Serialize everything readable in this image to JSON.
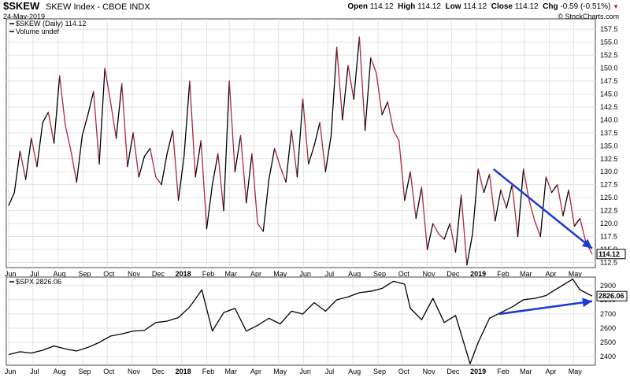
{
  "header": {
    "symbol": "$SKEW",
    "name": "SKEW Index - CBOE INDX",
    "date": "24-May-2019",
    "open_label": "Open",
    "open": "114.12",
    "high_label": "High",
    "high": "114.12",
    "low_label": "Low",
    "low": "114.12",
    "close_label": "Close",
    "close": "114.12",
    "chg_label": "Chg",
    "chg": "-0.59 (-0.51%)",
    "credit": "© StockCharts.com"
  },
  "colors": {
    "skew_line_down": "#b0263a",
    "skew_line_up": "#000000",
    "spx_line": "#000000",
    "arrow": "#1a3bd6",
    "grid": "#e3e3e3",
    "frame": "#444444"
  },
  "chart_data": [
    {
      "type": "line",
      "title": "$SKEW (Daily) 114.12",
      "legend": [
        "$SKEW (Daily) 114.12",
        "Volume undef"
      ],
      "legend_placement": "top-left",
      "x_tick_labels": [
        "Jun",
        "Jul",
        "Aug",
        "Sep",
        "Oct",
        "Nov",
        "Dec",
        "2018",
        "Feb",
        "Mar",
        "Apr",
        "May",
        "Jun",
        "Jul",
        "Aug",
        "Sep",
        "Oct",
        "Nov",
        "Dec",
        "2019",
        "Feb",
        "Mar",
        "Apr",
        "May"
      ],
      "y_tick_labels": [
        "112.5",
        "115.0",
        "117.5",
        "120.0",
        "122.5",
        "125.0",
        "127.5",
        "130.0",
        "132.5",
        "135.0",
        "137.5",
        "140.0",
        "142.5",
        "145.0",
        "147.5",
        "150.0",
        "152.5",
        "155.0",
        "157.5"
      ],
      "ylim": [
        111.5,
        159.5
      ],
      "grid": true,
      "last_value_label": "114.12",
      "series": [
        {
          "x": [
            "2017-06-01",
            "2017-06-08",
            "2017-06-15",
            "2017-06-22",
            "2017-06-29",
            "2017-07-06",
            "2017-07-13",
            "2017-07-20",
            "2017-07-27",
            "2017-08-03",
            "2017-08-10",
            "2017-08-17",
            "2017-08-24",
            "2017-08-31",
            "2017-09-07",
            "2017-09-14",
            "2017-09-21",
            "2017-09-28",
            "2017-10-05",
            "2017-10-12",
            "2017-10-19",
            "2017-10-26",
            "2017-11-02",
            "2017-11-09",
            "2017-11-16",
            "2017-11-23",
            "2017-11-30",
            "2017-12-07",
            "2017-12-14",
            "2017-12-21",
            "2017-12-28",
            "2018-01-04",
            "2018-01-11",
            "2018-01-18",
            "2018-01-25",
            "2018-02-01",
            "2018-02-08",
            "2018-02-15",
            "2018-02-22",
            "2018-03-01",
            "2018-03-08",
            "2018-03-15",
            "2018-03-22",
            "2018-03-29",
            "2018-04-05",
            "2018-04-12",
            "2018-04-19",
            "2018-04-26",
            "2018-05-03",
            "2018-05-10",
            "2018-05-17",
            "2018-05-24",
            "2018-05-31",
            "2018-06-07",
            "2018-06-14",
            "2018-06-21",
            "2018-06-28",
            "2018-07-05",
            "2018-07-12",
            "2018-07-19",
            "2018-07-26",
            "2018-08-02",
            "2018-08-09",
            "2018-08-16",
            "2018-08-23",
            "2018-08-30",
            "2018-09-06",
            "2018-09-13",
            "2018-09-20",
            "2018-09-27",
            "2018-10-04",
            "2018-10-11",
            "2018-10-18",
            "2018-10-25",
            "2018-11-01",
            "2018-11-08",
            "2018-11-15",
            "2018-11-22",
            "2018-11-29",
            "2018-12-06",
            "2018-12-13",
            "2018-12-20",
            "2018-12-27",
            "2019-01-03",
            "2019-01-10",
            "2019-01-17",
            "2019-01-24",
            "2019-01-31",
            "2019-02-07",
            "2019-02-14",
            "2019-02-21",
            "2019-02-28",
            "2019-03-07",
            "2019-03-14",
            "2019-03-21",
            "2019-03-28",
            "2019-04-04",
            "2019-04-11",
            "2019-04-18",
            "2019-04-25",
            "2019-05-02",
            "2019-05-09",
            "2019-05-16",
            "2019-05-24"
          ],
          "values": [
            123.5,
            126.0,
            134.0,
            128.5,
            136.5,
            131.0,
            139.5,
            141.5,
            135.5,
            148.5,
            139.0,
            134.0,
            128.0,
            137.0,
            141.0,
            145.5,
            131.5,
            150.0,
            143.5,
            136.5,
            147.0,
            131.0,
            137.5,
            129.0,
            133.0,
            134.5,
            129.0,
            127.5,
            133.5,
            138.0,
            124.5,
            133.0,
            147.5,
            129.0,
            136.0,
            119.0,
            127.5,
            133.5,
            122.5,
            147.5,
            130.0,
            137.0,
            124.0,
            133.5,
            120.0,
            118.5,
            128.5,
            134.5,
            131.0,
            128.0,
            138.0,
            129.0,
            144.0,
            131.5,
            135.0,
            139.5,
            130.0,
            137.0,
            154.0,
            140.0,
            150.5,
            144.0,
            156.0,
            138.0,
            152.0,
            149.0,
            141.0,
            143.5,
            138.0,
            136.0,
            124.5,
            130.0,
            121.0,
            127.0,
            115.0,
            120.0,
            118.0,
            117.0,
            120.0,
            114.5,
            125.5,
            112.0,
            118.0,
            130.5,
            126.0,
            129.5,
            120.5,
            126.5,
            123.0,
            127.5,
            117.5,
            130.5,
            124.5,
            120.5,
            117.5,
            129.0,
            126.0,
            127.5,
            121.5,
            126.5,
            119.5,
            121.0,
            116.5,
            114.12
          ]
        }
      ]
    },
    {
      "type": "line",
      "title": "$SPX 2826.06",
      "legend": [
        "$SPX 2826.06"
      ],
      "legend_placement": "top-left",
      "x_tick_labels": [
        "Jun",
        "Jul",
        "Aug",
        "Sep",
        "Oct",
        "Nov",
        "Dec",
        "2018",
        "Feb",
        "Mar",
        "Apr",
        "May",
        "Jun",
        "Jul",
        "Aug",
        "Sep",
        "Oct",
        "Nov",
        "Dec",
        "2019",
        "Feb",
        "Mar",
        "Apr",
        "May"
      ],
      "y_tick_labels": [
        "2400",
        "2500",
        "2600",
        "2700",
        "2800",
        "2900"
      ],
      "ylim": [
        2340,
        2960
      ],
      "grid": true,
      "last_value_label": "2826.06",
      "series": [
        {
          "x": [
            "2017-06-01",
            "2017-06-15",
            "2017-06-29",
            "2017-07-13",
            "2017-07-27",
            "2017-08-10",
            "2017-08-24",
            "2017-09-07",
            "2017-09-21",
            "2017-10-05",
            "2017-10-19",
            "2017-11-02",
            "2017-11-16",
            "2017-11-30",
            "2017-12-14",
            "2017-12-28",
            "2018-01-11",
            "2018-01-26",
            "2018-02-08",
            "2018-02-22",
            "2018-03-08",
            "2018-03-22",
            "2018-04-05",
            "2018-04-19",
            "2018-05-03",
            "2018-05-17",
            "2018-05-31",
            "2018-06-14",
            "2018-06-28",
            "2018-07-12",
            "2018-07-26",
            "2018-08-09",
            "2018-08-23",
            "2018-09-06",
            "2018-09-20",
            "2018-10-04",
            "2018-10-11",
            "2018-10-25",
            "2018-11-08",
            "2018-11-22",
            "2018-12-06",
            "2018-12-24",
            "2019-01-03",
            "2019-01-17",
            "2019-01-31",
            "2019-02-14",
            "2019-02-28",
            "2019-03-14",
            "2019-03-28",
            "2019-04-11",
            "2019-04-30",
            "2019-05-09",
            "2019-05-24"
          ],
          "values": [
            2415,
            2435,
            2425,
            2445,
            2475,
            2455,
            2440,
            2465,
            2500,
            2545,
            2560,
            2580,
            2585,
            2640,
            2650,
            2675,
            2750,
            2870,
            2580,
            2710,
            2740,
            2580,
            2620,
            2670,
            2630,
            2720,
            2700,
            2780,
            2720,
            2800,
            2820,
            2850,
            2860,
            2880,
            2930,
            2910,
            2740,
            2660,
            2810,
            2640,
            2690,
            2350,
            2500,
            2670,
            2710,
            2750,
            2800,
            2810,
            2830,
            2880,
            2945,
            2870,
            2826
          ]
        }
      ]
    }
  ]
}
